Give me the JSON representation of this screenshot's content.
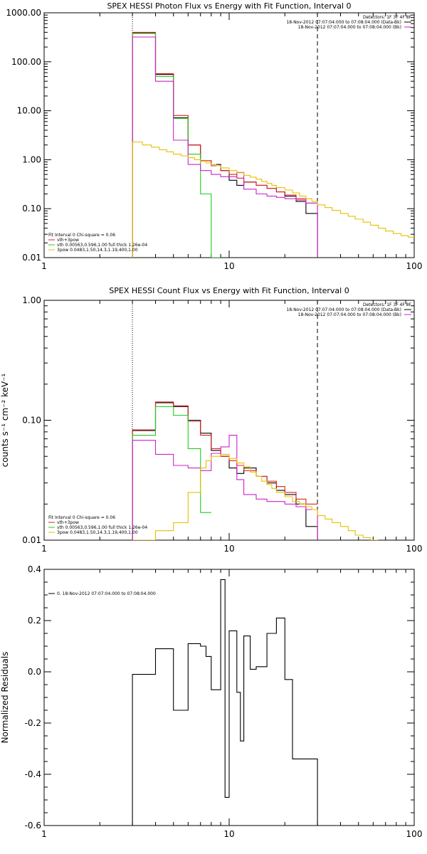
{
  "colors": {
    "data": "#000000",
    "total": "#e02020",
    "thermal": "#20cc20",
    "powerlaw": "#e6c000",
    "background": "#cc22cc"
  },
  "chart_data": [
    {
      "type": "line",
      "title": "SPEX HESSI Photon Flux vs Energy with Fit Function, Interval 0",
      "xlabel": "",
      "ylabel": "",
      "scale": "log-log",
      "xlim": [
        1,
        100
      ],
      "ylim": [
        0.01,
        1000
      ],
      "xticks": [
        {
          "v": 1,
          "label": "1"
        },
        {
          "v": 10,
          "label": "10"
        },
        {
          "v": 100,
          "label": "100"
        }
      ],
      "yticks": [
        {
          "v": 1000,
          "label": "1000.00"
        },
        {
          "v": 100,
          "label": "100.00"
        },
        {
          "v": 10,
          "label": "10.00"
        },
        {
          "v": 1,
          "label": "1.00"
        },
        {
          "v": 0.1,
          "label": "0.10"
        },
        {
          "v": 0.01,
          "label": "0.01"
        }
      ],
      "vlines": [
        {
          "x": 3.0,
          "style": "dotted"
        },
        {
          "x": 30.0,
          "style": "dashed"
        }
      ],
      "legend_right": [
        "Detectors: 1F 3F 4F 8F",
        "18-Nov-2012 07:07:04.000 to 07:08:04.000 (Data-Bk)",
        "18-Nov-2012 07:07:04.000 to 07:08:04.000 (Bk)"
      ],
      "legend_right_colors": [
        "",
        "data",
        "background"
      ],
      "legend_left": [
        "Fit Interval  0    Chi-square = 0.06",
        "vth+3pow",
        "vth 0.00563,0.596,1.00   full thick 1.26e-04",
        "3pow 0.0483,1.50,14.3,1.19,400,1.00"
      ],
      "legend_left_colors": [
        "",
        "total",
        "thermal",
        "powerlaw"
      ],
      "series": [
        {
          "name": "Data-Bk",
          "color": "data",
          "edges": [
            3.0,
            4.0,
            5.0,
            6.0,
            7.0,
            8.0,
            9.0,
            10.0,
            11.0,
            12.0,
            14.0,
            16.0,
            18.0,
            20.0,
            23.0,
            26.0,
            30.0
          ],
          "values": [
            390,
            55,
            7.2,
            2.0,
            0.95,
            0.8,
            0.6,
            0.38,
            0.3,
            0.35,
            0.3,
            0.26,
            0.22,
            0.18,
            0.14,
            0.08
          ],
          "drop_end": true
        },
        {
          "name": "vth+3pow",
          "color": "total",
          "edges": [
            3.0,
            4.0,
            5.0,
            6.0,
            7.0,
            8.0,
            9.0,
            10.0,
            11.0,
            12.0,
            14.0,
            16.0,
            18.0,
            20.0,
            23.0,
            26.0,
            30.0
          ],
          "values": [
            400,
            57,
            8.0,
            2.0,
            0.95,
            0.75,
            0.6,
            0.5,
            0.42,
            0.35,
            0.3,
            0.26,
            0.22,
            0.19,
            0.16,
            0.13
          ],
          "drop_end": false
        },
        {
          "name": "vth",
          "color": "thermal",
          "edges": [
            3.0,
            4.0,
            5.0,
            6.0,
            7.0,
            8.0,
            9.0
          ],
          "values": [
            380,
            50,
            7.0,
            1.3,
            0.2,
            0.007
          ],
          "drop_end": false
        },
        {
          "name": "Bk",
          "color": "background",
          "edges": [
            3.0,
            4.0,
            5.0,
            6.0,
            7.0,
            8.0,
            9.0,
            10.0,
            11.0,
            12.0,
            14.0,
            16.0,
            18.0,
            20.0,
            23.0,
            26.0,
            30.0
          ],
          "values": [
            320,
            40,
            2.5,
            0.8,
            0.6,
            0.5,
            0.45,
            0.45,
            0.55,
            0.25,
            0.2,
            0.18,
            0.17,
            0.16,
            0.15,
            0.13
          ],
          "drop_end": true
        },
        {
          "name": "3pow",
          "color": "powerlaw",
          "edges": [
            3.0,
            3.4,
            3.8,
            4.2,
            4.6,
            5.0,
            5.5,
            6.0,
            6.5,
            7.0,
            7.5,
            8.0,
            8.5,
            9.0,
            10.0,
            11.0,
            12.0,
            13.0,
            14.0,
            15.0,
            16.0,
            17.0,
            18.0,
            20.0,
            22.0,
            24.0,
            26.0,
            28.0,
            30.0,
            33.0,
            36.0,
            40.0,
            44.0,
            48.0,
            53.0,
            58.0,
            64.0,
            70.0,
            77.0,
            85.0,
            93.0,
            100.0
          ],
          "values": [
            2.3,
            2.0,
            1.8,
            1.6,
            1.45,
            1.3,
            1.2,
            1.1,
            1.0,
            0.93,
            0.86,
            0.8,
            0.75,
            0.68,
            0.6,
            0.54,
            0.48,
            0.44,
            0.4,
            0.36,
            0.33,
            0.3,
            0.27,
            0.24,
            0.21,
            0.18,
            0.16,
            0.14,
            0.12,
            0.105,
            0.092,
            0.08,
            0.07,
            0.061,
            0.053,
            0.046,
            0.04,
            0.035,
            0.031,
            0.028,
            0.026
          ],
          "drop_end": false,
          "start_from_bottom": true
        }
      ]
    },
    {
      "type": "line",
      "title": "SPEX HESSI Count Flux vs Energy with Fit Function, Interval 0",
      "xlabel": "",
      "ylabel": "counts s⁻¹ cm⁻² keV⁻¹",
      "scale": "log-log",
      "xlim": [
        1,
        100
      ],
      "ylim": [
        0.01,
        1.0
      ],
      "xticks": [
        {
          "v": 1,
          "label": "1"
        },
        {
          "v": 10,
          "label": "10"
        },
        {
          "v": 100,
          "label": "100"
        }
      ],
      "yticks": [
        {
          "v": 1.0,
          "label": "1.00"
        },
        {
          "v": 0.1,
          "label": "0.10"
        },
        {
          "v": 0.01,
          "label": "0.01"
        }
      ],
      "vlines": [
        {
          "x": 3.0,
          "style": "dotted"
        },
        {
          "x": 30.0,
          "style": "dashed"
        }
      ],
      "legend_right": [
        "Detectors: 1F 3F 4F 8F",
        "18-Nov-2012 07:07:04.000 to 07:08:04.000 (Data-Bk)",
        "18-Nov-2012 07:07:04.000 to 07:08:04.000 (Bk)"
      ],
      "legend_right_colors": [
        "",
        "data",
        "background"
      ],
      "legend_left": [
        "Fit Interval  0    Chi-square = 0.06",
        "vth+3pow",
        "vth 0.00563,0.596,1.00   full thick 1.26e-04",
        "3pow 0.0483,1.50,14.3,1.19,400,1.00"
      ],
      "legend_left_colors": [
        "",
        "total",
        "thermal",
        "powerlaw"
      ],
      "series": [
        {
          "name": "Data-Bk",
          "color": "data",
          "edges": [
            3.0,
            4.0,
            5.0,
            6.0,
            7.0,
            8.0,
            9.0,
            10.0,
            11.0,
            12.0,
            14.0,
            16.0,
            18.0,
            20.0,
            23.0,
            26.0,
            30.0
          ],
          "values": [
            0.082,
            0.14,
            0.13,
            0.1,
            0.078,
            0.056,
            0.05,
            0.04,
            0.036,
            0.04,
            0.034,
            0.03,
            0.026,
            0.024,
            0.02,
            0.013
          ],
          "drop_end": true
        },
        {
          "name": "vth+3pow",
          "color": "total",
          "edges": [
            3.0,
            4.0,
            5.0,
            6.0,
            7.0,
            8.0,
            9.0,
            10.0,
            11.0,
            12.0,
            14.0,
            16.0,
            18.0,
            20.0,
            23.0,
            26.0,
            30.0
          ],
          "values": [
            0.083,
            0.142,
            0.132,
            0.098,
            0.075,
            0.058,
            0.05,
            0.046,
            0.042,
            0.038,
            0.034,
            0.031,
            0.028,
            0.025,
            0.022,
            0.02
          ],
          "drop_end": false
        },
        {
          "name": "vth",
          "color": "thermal",
          "edges": [
            3.0,
            4.0,
            5.0,
            6.0,
            7.0,
            8.0
          ],
          "values": [
            0.075,
            0.13,
            0.11,
            0.058,
            0.017
          ],
          "drop_end": false
        },
        {
          "name": "Bk",
          "color": "background",
          "edges": [
            3.0,
            4.0,
            5.0,
            6.0,
            7.0,
            8.0,
            9.0,
            10.0,
            11.0,
            12.0,
            14.0,
            16.0,
            18.0,
            20.0,
            23.0,
            26.0,
            30.0
          ],
          "values": [
            0.068,
            0.052,
            0.042,
            0.04,
            0.038,
            0.053,
            0.06,
            0.075,
            0.032,
            0.024,
            0.022,
            0.021,
            0.021,
            0.02,
            0.019,
            0.018
          ],
          "drop_end": true
        },
        {
          "name": "3pow",
          "color": "powerlaw",
          "edges": [
            3.0,
            4.0,
            5.0,
            6.0,
            7.0,
            7.5,
            8.0,
            9.0,
            10.0,
            11.0,
            12.0,
            13.0,
            14.0,
            15.0,
            16.0,
            17.0,
            18.0,
            20.0,
            22.0,
            24.0,
            26.0,
            28.0,
            30.0,
            33.0,
            36.0,
            40.0,
            44.0,
            48.0,
            53.0,
            58.0,
            64.0
          ],
          "values": [
            0.009,
            0.012,
            0.014,
            0.025,
            0.04,
            0.046,
            0.05,
            0.052,
            0.048,
            0.044,
            0.041,
            0.037,
            0.034,
            0.031,
            0.029,
            0.027,
            0.025,
            0.023,
            0.021,
            0.02,
            0.019,
            0.018,
            0.016,
            0.015,
            0.014,
            0.013,
            0.012,
            0.011,
            0.0105,
            0.01
          ],
          "drop_end": false,
          "start_from_bottom": true
        }
      ]
    },
    {
      "type": "line",
      "title": "",
      "xlabel": "",
      "ylabel": "Normalized Residuals",
      "scale": "log-linear",
      "xlim": [
        1,
        100
      ],
      "ylim": [
        -0.6,
        0.4
      ],
      "xticks": [
        {
          "v": 1,
          "label": "1"
        },
        {
          "v": 10,
          "label": "10"
        },
        {
          "v": 100,
          "label": "100"
        }
      ],
      "yticks": [
        {
          "v": 0.4,
          "label": "0.4"
        },
        {
          "v": 0.2,
          "label": "0.2"
        },
        {
          "v": 0.0,
          "label": "0.0"
        },
        {
          "v": -0.2,
          "label": "-0.2"
        },
        {
          "v": -0.4,
          "label": "-0.4"
        },
        {
          "v": -0.6,
          "label": "-0.6"
        }
      ],
      "vlines": [],
      "legend_left": [
        "0. 18-Nov-2012 07:07:04.000 to 07:08:04.000"
      ],
      "legend_left_colors": [
        "data"
      ],
      "legend_right": [],
      "legend_right_colors": [],
      "series": [
        {
          "name": "Residuals",
          "color": "data",
          "edges": [
            3.0,
            3.4,
            4.0,
            5.0,
            6.0,
            7.0,
            7.5,
            8.0,
            9.0,
            9.5,
            10.0,
            11.0,
            11.5,
            12.0,
            13.0,
            14.0,
            16.0,
            18.0,
            20.0,
            22.0,
            24.0,
            26.0,
            27.0,
            30.0
          ],
          "values": [
            -0.01,
            -0.01,
            0.09,
            -0.15,
            0.11,
            0.1,
            0.06,
            -0.07,
            0.36,
            -0.49,
            0.16,
            -0.08,
            -0.27,
            0.14,
            0.01,
            0.02,
            0.15,
            0.21,
            -0.03,
            -0.34,
            -0.34,
            -0.34,
            -0.34
          ],
          "drop_end": true,
          "start_from_bottom": true
        }
      ]
    }
  ]
}
